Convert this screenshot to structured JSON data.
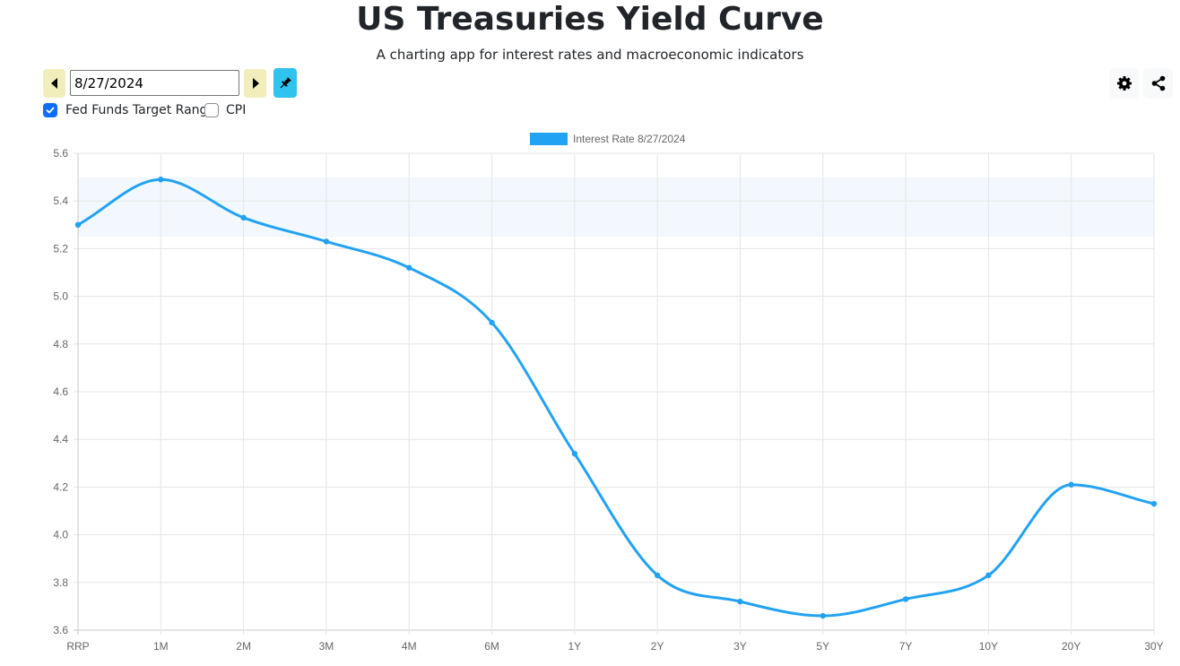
{
  "header": {
    "title": "US Treasuries Yield Curve",
    "subtitle": "A charting app for interest rates and macroeconomic indicators"
  },
  "controls": {
    "date_value": "8/27/2024",
    "prev_icon": "caret-left-icon",
    "next_icon": "caret-right-icon",
    "pin_icon": "pin-icon",
    "settings_icon": "gear-icon",
    "share_icon": "share-icon",
    "toggles": [
      {
        "label": "Fed Funds Target Range",
        "checked": true
      },
      {
        "label": "CPI",
        "checked": false
      }
    ]
  },
  "colors": {
    "line": "#22a2f2",
    "band": "#f2f8fe",
    "nav_button": "#f2eebb",
    "pin_button": "#2fc3ee",
    "checkbox": "#0d6efd"
  },
  "chart_data": {
    "type": "line",
    "title": "",
    "xlabel": "",
    "ylabel": "",
    "categories": [
      "RRP",
      "1M",
      "2M",
      "3M",
      "4M",
      "6M",
      "1Y",
      "2Y",
      "3Y",
      "5Y",
      "7Y",
      "10Y",
      "20Y",
      "30Y"
    ],
    "series": [
      {
        "name": "Interest Rate 8/27/2024",
        "values": [
          5.3,
          5.49,
          5.33,
          5.23,
          5.12,
          4.89,
          4.34,
          3.83,
          3.72,
          3.66,
          3.73,
          3.83,
          4.21,
          4.13
        ]
      }
    ],
    "ylim": [
      3.6,
      5.6
    ],
    "yticks": [
      "5.6",
      "5.4",
      "5.2",
      "5.0",
      "4.8",
      "4.6",
      "4.4",
      "4.2",
      "4.0",
      "3.8",
      "3.6"
    ],
    "fed_funds_target_range": [
      5.25,
      5.5
    ],
    "grid": true,
    "legend_position": "top"
  }
}
